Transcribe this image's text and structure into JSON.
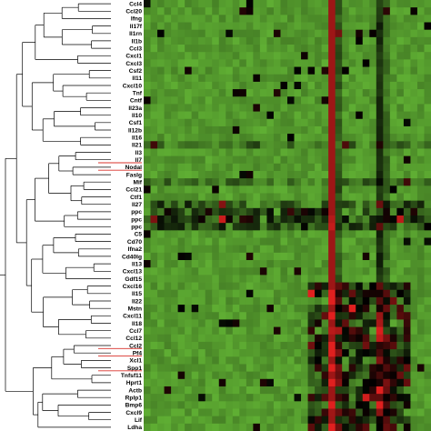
{
  "heatmap": {
    "row_labels": [
      "Ccl4",
      "Ccl20",
      "Ifng",
      "Il17f",
      "Il1rn",
      "Il1b",
      "Ccl3",
      "Cxcl1",
      "Cxcl3",
      "Csf2",
      "Il11",
      "Cxcl10",
      "Tnf",
      "Cntf",
      "Il23a",
      "Il10",
      "Csf1",
      "Il12b",
      "Il16",
      "Il21",
      "Il3",
      "Il7",
      "Nodal",
      "Faslg",
      "Mif",
      "Ccl21",
      "Ctf1",
      "Il27",
      "ppc",
      "ppc",
      "ppc",
      "C5",
      "Cd70",
      "Ifna2",
      "Cd40lg",
      "Il13",
      "Cxcl13",
      "Gdf15",
      "Cxcl16",
      "Il15",
      "Il22",
      "Mstn",
      "Cxcl11",
      "Il18",
      "Ccl7",
      "Ccl12",
      "Ccl2",
      "Pf4",
      "Xcl1",
      "Spp1",
      "Tnfsf11",
      "Hprt1",
      "Actb",
      "Rplp1",
      "Bmp6",
      "Cxcl9",
      "Lif",
      "Ldha"
    ],
    "underlined_labels": [
      "Il7",
      "Nodal",
      "Ccl2",
      "Pf4",
      "Spp1"
    ],
    "colors": {
      "low": "#5fae33",
      "mid": "#000000",
      "high": "#e0201f",
      "underline": "#d9302a",
      "dendrogram": "#000000"
    }
  }
}
